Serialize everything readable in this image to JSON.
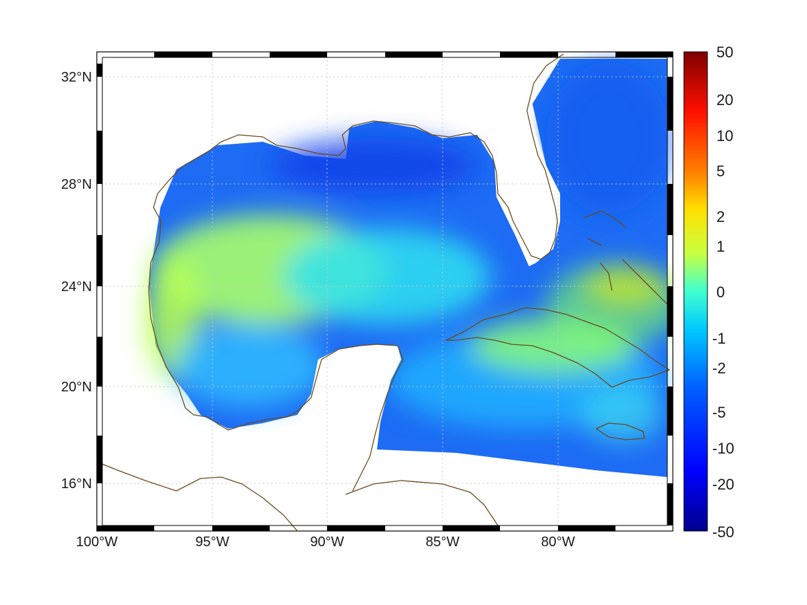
{
  "map": {
    "lon_ticks": [
      "100°W",
      "95°W",
      "90°W",
      "85°W",
      "80°W"
    ],
    "lat_ticks": [
      "32°N",
      "28°N",
      "24°N",
      "20°N",
      "16°N"
    ],
    "projection_note_visible": false,
    "coastline_color": "#6b4a1b",
    "land_color": "#ffffff"
  },
  "colorbar": {
    "labels": [
      "50",
      "20",
      "10",
      "5",
      "2",
      "1",
      "0",
      "-1",
      "-2",
      "-5",
      "-10",
      "-20",
      "-50"
    ],
    "colors": [
      "#7f0000",
      "#ff0000",
      "#ff8000",
      "#ffff00",
      "#80ff80",
      "#00ffff",
      "#0080ff",
      "#0000ff",
      "#00008f"
    ]
  }
}
